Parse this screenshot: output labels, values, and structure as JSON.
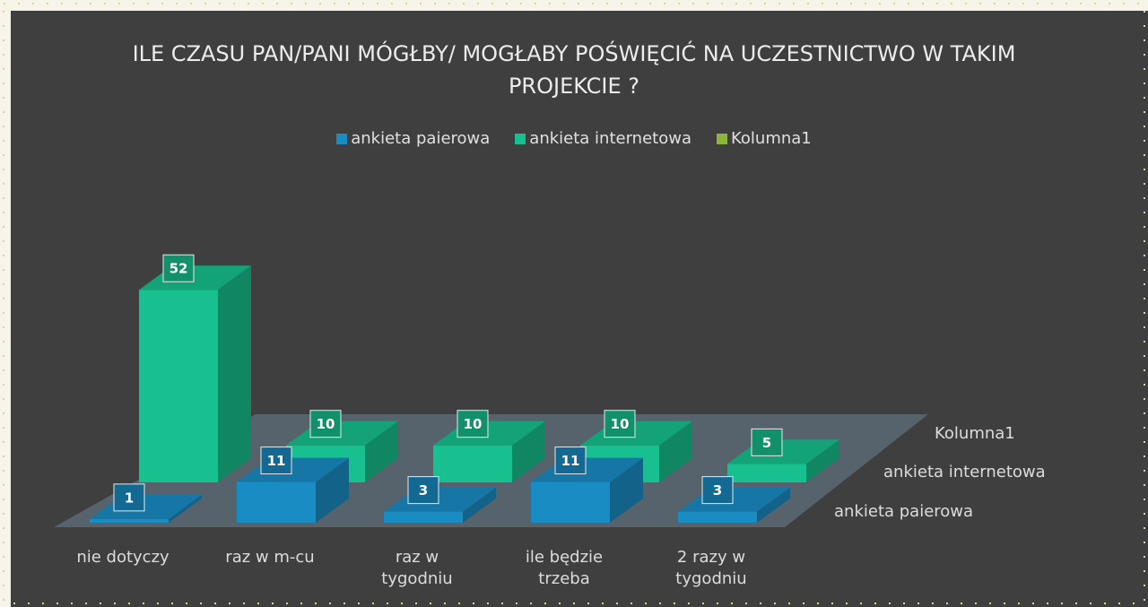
{
  "chart_data": {
    "type": "bar3d",
    "title": "ILE CZASU PAN/PANI MÓGŁBY/ MOGŁABY POŚWIĘCIĆ NA UCZESTNICTWO W TAKIM PROJEKCIE ?",
    "categories": [
      "nie dotyczy",
      "raz w m-cu",
      "raz w tygodniu",
      "ile będzie trzeba",
      "2 razy w tygodniu"
    ],
    "series": [
      {
        "name": "ankieta paierowa",
        "color": "#1a8cc4",
        "values": [
          1,
          11,
          3,
          11,
          3
        ]
      },
      {
        "name": "ankieta internetowa",
        "color": "#17c08e",
        "values": [
          52,
          10,
          10,
          10,
          5
        ]
      },
      {
        "name": "Kolumna1",
        "color": "#8db53a",
        "values": [
          null,
          null,
          null,
          null,
          null
        ]
      }
    ],
    "legend": "top"
  }
}
